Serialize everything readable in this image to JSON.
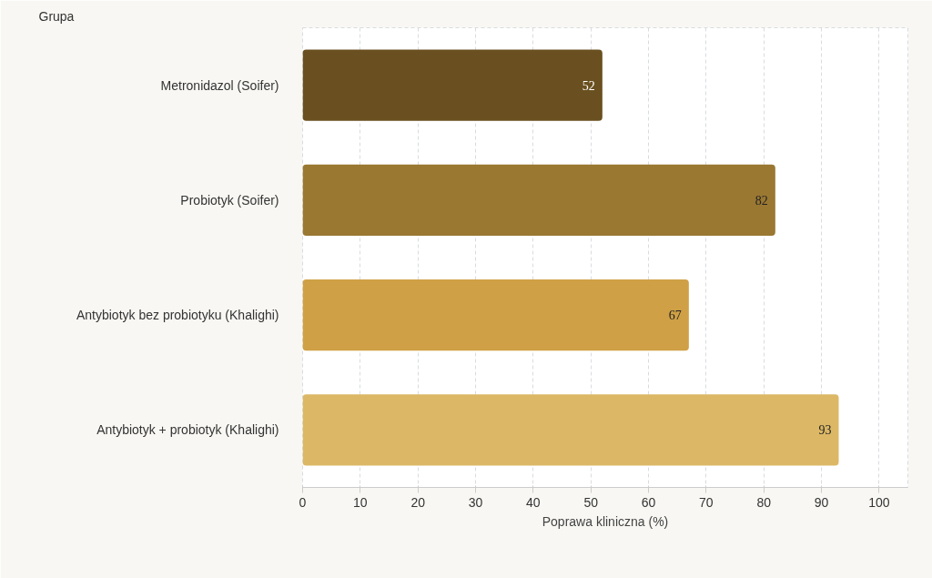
{
  "chart_data": {
    "type": "bar",
    "orientation": "horizontal",
    "xlabel": "Poprawa kliniczna (%)",
    "ylabel": "Grupa",
    "categories": [
      "Metronidazol (Soifer)",
      "Probiotyk (Soifer)",
      "Antybiotyk bez probiotyku (Khalighi)",
      "Antybiotyk + probiotyk (Khalighi)"
    ],
    "values": [
      52,
      82,
      67,
      93
    ],
    "colors": [
      "#6a5020",
      "#9a7832",
      "#cfa045",
      "#dcb866"
    ],
    "xlim": [
      0,
      105
    ],
    "xticks": [
      0,
      10,
      20,
      30,
      40,
      50,
      60,
      70,
      80,
      90,
      100
    ],
    "grid": "x",
    "data_labels": true
  }
}
